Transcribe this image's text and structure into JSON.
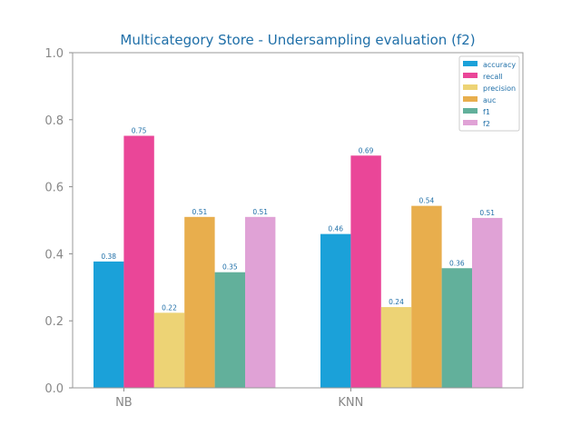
{
  "chart_data": {
    "type": "bar",
    "title": "Multicategory Store - Undersampling evaluation (f2)",
    "xlabel": "",
    "ylabel": "",
    "categories": [
      "NB",
      "KNN"
    ],
    "series": [
      {
        "name": "accuracy",
        "values": [
          0.377,
          0.459
        ],
        "labels": [
          "0.38",
          "0.46"
        ]
      },
      {
        "name": "recall",
        "values": [
          0.752,
          0.693
        ],
        "labels": [
          "0.75",
          "0.69"
        ]
      },
      {
        "name": "precision",
        "values": [
          0.224,
          0.241
        ],
        "labels": [
          "0.22",
          "0.24"
        ]
      },
      {
        "name": "auc",
        "values": [
          0.51,
          0.543
        ],
        "labels": [
          "0.51",
          "0.54"
        ]
      },
      {
        "name": "f1",
        "values": [
          0.345,
          0.357
        ],
        "labels": [
          "0.35",
          "0.36"
        ]
      },
      {
        "name": "f2",
        "values": [
          0.51,
          0.507
        ],
        "labels": [
          "0.51",
          "0.51"
        ]
      }
    ],
    "ylim": [
      0,
      1.0
    ],
    "yticks": [
      "0.0",
      "0.2",
      "0.4",
      "0.6",
      "0.8",
      "1.0"
    ],
    "grid": false,
    "legend_position": "top-right"
  },
  "colors": {
    "series": [
      "#1ba1d9",
      "#ea4698",
      "#edd375",
      "#e8ae4d",
      "#62b09b",
      "#e0a2d6"
    ],
    "title": "#1f6fa8",
    "label": "#1f6fa8",
    "axis": "#888888",
    "legend_text": "#1f6fa8"
  }
}
